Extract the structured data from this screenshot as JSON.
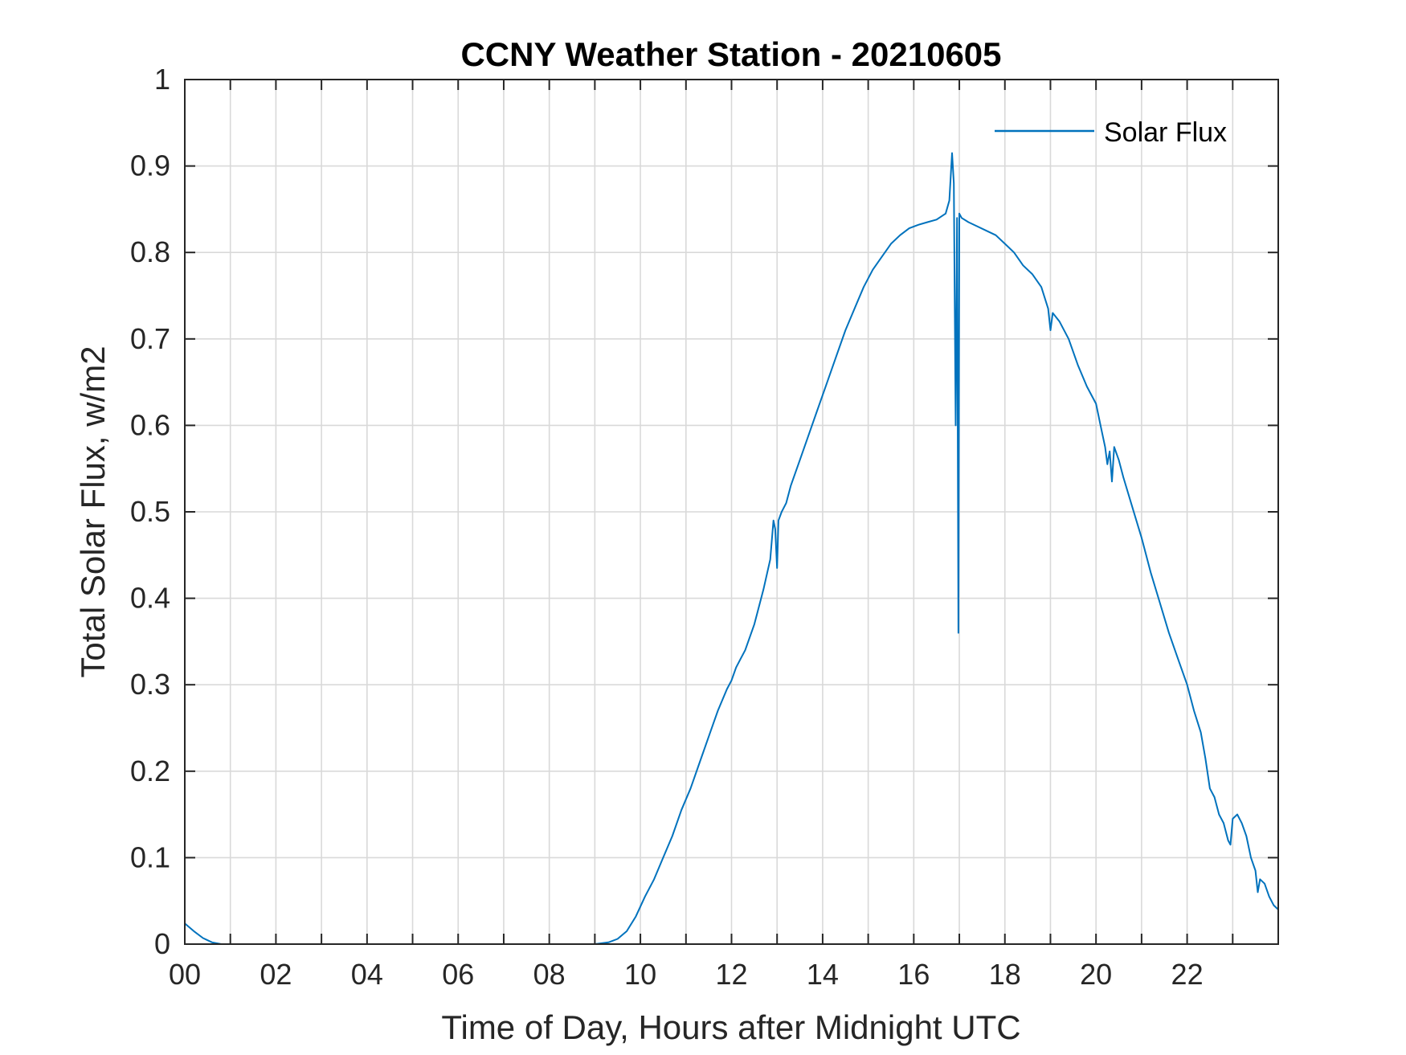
{
  "chart_data": {
    "type": "line",
    "title": "CCNY Weather Station - 20210605",
    "xlabel": "Time of Day, Hours after Midnight UTC",
    "ylabel": "Total Solar Flux, w/m2",
    "xlim": [
      0,
      24
    ],
    "ylim": [
      0,
      1
    ],
    "grid": true,
    "legend_position": "top-right",
    "line_color": "#0072bd",
    "x_tick_values": [
      0,
      1,
      2,
      3,
      4,
      5,
      6,
      7,
      8,
      9,
      10,
      11,
      12,
      13,
      14,
      15,
      16,
      17,
      18,
      19,
      20,
      21,
      22,
      23
    ],
    "x_tick_labels": [
      "00",
      "02",
      "04",
      "06",
      "08",
      "10",
      "12",
      "14",
      "16",
      "18",
      "20",
      "22"
    ],
    "x_tick_label_values": [
      0,
      2,
      4,
      6,
      8,
      10,
      12,
      14,
      16,
      18,
      20,
      22
    ],
    "y_ticks": [
      0,
      0.1,
      0.2,
      0.3,
      0.4,
      0.5,
      0.6,
      0.7,
      0.8,
      0.9,
      1
    ],
    "y_tick_labels": [
      "0",
      "0.1",
      "0.2",
      "0.3",
      "0.4",
      "0.5",
      "0.6",
      "0.7",
      "0.8",
      "0.9",
      "1"
    ],
    "series": [
      {
        "name": "Solar Flux",
        "points": [
          [
            0.0,
            0.024
          ],
          [
            0.2,
            0.015
          ],
          [
            0.4,
            0.007
          ],
          [
            0.6,
            0.002
          ],
          [
            0.8,
            0.0
          ],
          [
            1.0,
            0.0
          ],
          [
            2.0,
            0.0
          ],
          [
            4.0,
            0.0
          ],
          [
            6.0,
            0.0
          ],
          [
            8.0,
            0.0
          ],
          [
            9.0,
            0.0
          ],
          [
            9.3,
            0.002
          ],
          [
            9.5,
            0.006
          ],
          [
            9.7,
            0.015
          ],
          [
            9.9,
            0.032
          ],
          [
            10.1,
            0.055
          ],
          [
            10.3,
            0.075
          ],
          [
            10.5,
            0.1
          ],
          [
            10.7,
            0.125
          ],
          [
            10.9,
            0.155
          ],
          [
            11.1,
            0.18
          ],
          [
            11.3,
            0.21
          ],
          [
            11.5,
            0.24
          ],
          [
            11.7,
            0.27
          ],
          [
            11.9,
            0.295
          ],
          [
            12.0,
            0.305
          ],
          [
            12.1,
            0.32
          ],
          [
            12.2,
            0.33
          ],
          [
            12.3,
            0.34
          ],
          [
            12.5,
            0.37
          ],
          [
            12.7,
            0.41
          ],
          [
            12.85,
            0.445
          ],
          [
            12.92,
            0.49
          ],
          [
            12.96,
            0.48
          ],
          [
            13.0,
            0.435
          ],
          [
            13.03,
            0.49
          ],
          [
            13.1,
            0.5
          ],
          [
            13.2,
            0.51
          ],
          [
            13.3,
            0.53
          ],
          [
            13.5,
            0.56
          ],
          [
            13.7,
            0.59
          ],
          [
            13.9,
            0.62
          ],
          [
            14.1,
            0.65
          ],
          [
            14.3,
            0.68
          ],
          [
            14.5,
            0.71
          ],
          [
            14.7,
            0.735
          ],
          [
            14.9,
            0.76
          ],
          [
            15.1,
            0.78
          ],
          [
            15.3,
            0.795
          ],
          [
            15.5,
            0.81
          ],
          [
            15.7,
            0.82
          ],
          [
            15.9,
            0.828
          ],
          [
            16.1,
            0.832
          ],
          [
            16.3,
            0.835
          ],
          [
            16.5,
            0.838
          ],
          [
            16.7,
            0.845
          ],
          [
            16.78,
            0.86
          ],
          [
            16.84,
            0.915
          ],
          [
            16.88,
            0.88
          ],
          [
            16.92,
            0.6
          ],
          [
            16.95,
            0.84
          ],
          [
            16.98,
            0.36
          ],
          [
            17.0,
            0.845
          ],
          [
            17.05,
            0.84
          ],
          [
            17.2,
            0.835
          ],
          [
            17.4,
            0.83
          ],
          [
            17.6,
            0.825
          ],
          [
            17.8,
            0.82
          ],
          [
            18.0,
            0.81
          ],
          [
            18.2,
            0.8
          ],
          [
            18.4,
            0.785
          ],
          [
            18.6,
            0.775
          ],
          [
            18.8,
            0.76
          ],
          [
            18.95,
            0.735
          ],
          [
            19.0,
            0.71
          ],
          [
            19.05,
            0.73
          ],
          [
            19.2,
            0.72
          ],
          [
            19.4,
            0.7
          ],
          [
            19.6,
            0.67
          ],
          [
            19.8,
            0.645
          ],
          [
            20.0,
            0.625
          ],
          [
            20.1,
            0.6
          ],
          [
            20.2,
            0.575
          ],
          [
            20.25,
            0.555
          ],
          [
            20.3,
            0.57
          ],
          [
            20.35,
            0.535
          ],
          [
            20.4,
            0.575
          ],
          [
            20.5,
            0.56
          ],
          [
            20.6,
            0.54
          ],
          [
            20.8,
            0.505
          ],
          [
            21.0,
            0.47
          ],
          [
            21.2,
            0.43
          ],
          [
            21.4,
            0.395
          ],
          [
            21.6,
            0.36
          ],
          [
            21.8,
            0.33
          ],
          [
            22.0,
            0.3
          ],
          [
            22.15,
            0.27
          ],
          [
            22.3,
            0.245
          ],
          [
            22.4,
            0.215
          ],
          [
            22.5,
            0.18
          ],
          [
            22.6,
            0.17
          ],
          [
            22.7,
            0.15
          ],
          [
            22.8,
            0.14
          ],
          [
            22.9,
            0.12
          ],
          [
            22.95,
            0.115
          ],
          [
            23.0,
            0.145
          ],
          [
            23.1,
            0.15
          ],
          [
            23.2,
            0.14
          ],
          [
            23.3,
            0.125
          ],
          [
            23.4,
            0.1
          ],
          [
            23.5,
            0.085
          ],
          [
            23.55,
            0.06
          ],
          [
            23.6,
            0.075
          ],
          [
            23.7,
            0.07
          ],
          [
            23.8,
            0.055
          ],
          [
            23.9,
            0.045
          ],
          [
            24.0,
            0.04
          ]
        ]
      }
    ]
  }
}
